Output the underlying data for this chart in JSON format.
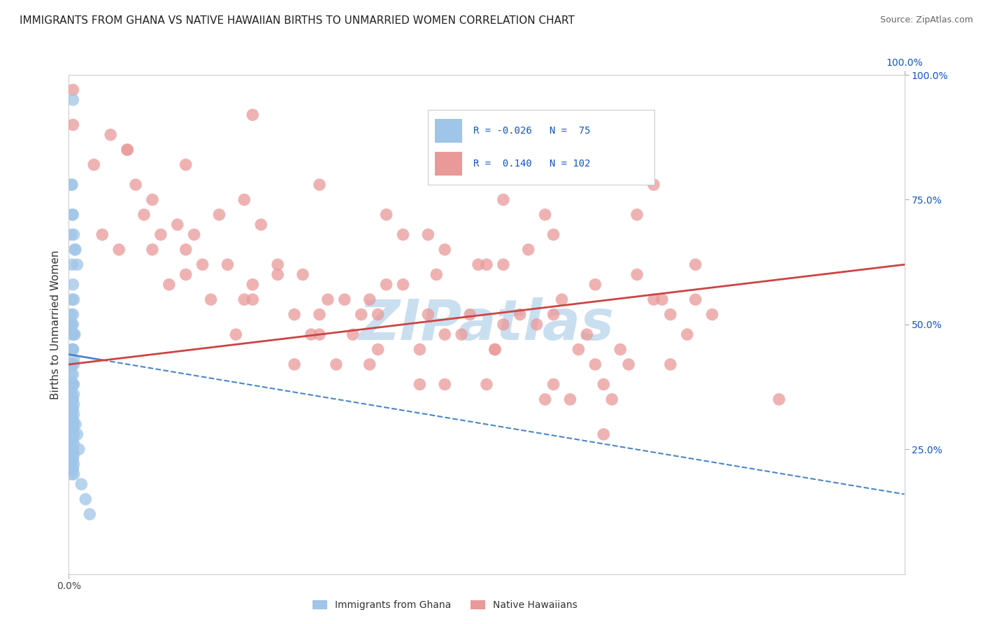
{
  "title": "IMMIGRANTS FROM GHANA VS NATIVE HAWAIIAN BIRTHS TO UNMARRIED WOMEN CORRELATION CHART",
  "source_text": "Source: ZipAtlas.com",
  "ylabel": "Births to Unmarried Women",
  "legend_label1": "Immigrants from Ghana",
  "legend_label2": "Native Hawaiians",
  "R1": "-0.026",
  "N1": "75",
  "R2": "0.140",
  "N2": "102",
  "color_blue": "#9fc5e8",
  "color_pink": "#ea9999",
  "color_blue_line": "#4a86c8",
  "color_pink_line": "#cc4444",
  "watermark_color": "#c9dff0",
  "background_color": "#ffffff",
  "title_color": "#222222",
  "source_color": "#666666",
  "axis_label_color": "#333333",
  "tick_color": "#1155cc",
  "grid_color": "#e0e0e0",
  "xlim": [
    0.0,
    1.0
  ],
  "ylim": [
    0.0,
    1.0
  ],
  "blue_intercept": 0.44,
  "blue_slope": -0.28,
  "pink_intercept": 0.42,
  "pink_slope": 0.2,
  "blue_scatter_x": [
    0.005,
    0.003,
    0.004,
    0.006,
    0.008,
    0.01,
    0.004,
    0.005,
    0.003,
    0.007,
    0.004,
    0.005,
    0.006,
    0.003,
    0.005,
    0.007,
    0.004,
    0.005,
    0.003,
    0.006,
    0.004,
    0.003,
    0.005,
    0.006,
    0.004,
    0.003,
    0.005,
    0.006,
    0.004,
    0.003,
    0.005,
    0.006,
    0.003,
    0.004,
    0.005,
    0.006,
    0.003,
    0.004,
    0.005,
    0.006,
    0.003,
    0.004,
    0.005,
    0.006,
    0.003,
    0.004,
    0.005,
    0.006,
    0.003,
    0.004,
    0.005,
    0.006,
    0.003,
    0.004,
    0.005,
    0.006,
    0.003,
    0.004,
    0.005,
    0.006,
    0.003,
    0.004,
    0.005,
    0.006,
    0.003,
    0.015,
    0.02,
    0.025,
    0.008,
    0.01,
    0.012,
    0.003,
    0.004,
    0.005,
    0.006
  ],
  "blue_scatter_y": [
    0.95,
    0.78,
    0.72,
    0.68,
    0.65,
    0.62,
    0.78,
    0.72,
    0.68,
    0.65,
    0.62,
    0.58,
    0.55,
    0.52,
    0.5,
    0.48,
    0.55,
    0.52,
    0.5,
    0.48,
    0.45,
    0.42,
    0.45,
    0.43,
    0.42,
    0.4,
    0.4,
    0.38,
    0.38,
    0.37,
    0.38,
    0.36,
    0.36,
    0.35,
    0.35,
    0.34,
    0.34,
    0.33,
    0.33,
    0.32,
    0.32,
    0.31,
    0.31,
    0.3,
    0.3,
    0.29,
    0.29,
    0.28,
    0.28,
    0.27,
    0.27,
    0.26,
    0.26,
    0.25,
    0.25,
    0.24,
    0.24,
    0.23,
    0.23,
    0.22,
    0.22,
    0.21,
    0.21,
    0.2,
    0.2,
    0.18,
    0.15,
    0.12,
    0.3,
    0.28,
    0.25,
    0.5,
    0.48,
    0.45,
    0.42
  ],
  "pink_scatter_x": [
    0.005,
    0.07,
    0.14,
    0.22,
    0.3,
    0.38,
    0.45,
    0.52,
    0.58,
    0.65,
    0.05,
    0.13,
    0.21,
    0.28,
    0.36,
    0.43,
    0.5,
    0.57,
    0.63,
    0.7,
    0.1,
    0.18,
    0.25,
    0.33,
    0.4,
    0.48,
    0.55,
    0.62,
    0.68,
    0.75,
    0.08,
    0.16,
    0.23,
    0.31,
    0.38,
    0.45,
    0.52,
    0.59,
    0.66,
    0.72,
    0.06,
    0.14,
    0.22,
    0.3,
    0.37,
    0.44,
    0.51,
    0.58,
    0.64,
    0.71,
    0.09,
    0.17,
    0.25,
    0.32,
    0.4,
    0.47,
    0.54,
    0.61,
    0.68,
    0.75,
    0.11,
    0.19,
    0.27,
    0.34,
    0.42,
    0.49,
    0.56,
    0.63,
    0.7,
    0.77,
    0.04,
    0.12,
    0.2,
    0.27,
    0.35,
    0.42,
    0.5,
    0.57,
    0.64,
    0.85,
    0.03,
    0.15,
    0.22,
    0.3,
    0.37,
    0.45,
    0.52,
    0.6,
    0.67,
    0.74,
    0.07,
    0.14,
    0.21,
    0.29,
    0.36,
    0.43,
    0.51,
    0.58,
    0.65,
    0.72,
    0.005,
    0.1
  ],
  "pink_scatter_y": [
    0.97,
    0.85,
    0.82,
    0.92,
    0.78,
    0.72,
    0.65,
    0.75,
    0.68,
    0.82,
    0.88,
    0.7,
    0.75,
    0.6,
    0.55,
    0.68,
    0.62,
    0.72,
    0.58,
    0.78,
    0.65,
    0.72,
    0.6,
    0.55,
    0.68,
    0.52,
    0.65,
    0.48,
    0.72,
    0.55,
    0.78,
    0.62,
    0.7,
    0.55,
    0.58,
    0.48,
    0.62,
    0.55,
    0.45,
    0.52,
    0.65,
    0.6,
    0.55,
    0.48,
    0.52,
    0.6,
    0.45,
    0.52,
    0.38,
    0.55,
    0.72,
    0.55,
    0.62,
    0.42,
    0.58,
    0.48,
    0.52,
    0.45,
    0.6,
    0.62,
    0.68,
    0.62,
    0.52,
    0.48,
    0.38,
    0.62,
    0.5,
    0.42,
    0.55,
    0.52,
    0.68,
    0.58,
    0.48,
    0.42,
    0.52,
    0.45,
    0.38,
    0.35,
    0.28,
    0.35,
    0.82,
    0.68,
    0.58,
    0.52,
    0.45,
    0.38,
    0.5,
    0.35,
    0.42,
    0.48,
    0.85,
    0.65,
    0.55,
    0.48,
    0.42,
    0.52,
    0.45,
    0.38,
    0.35,
    0.42,
    0.9,
    0.75
  ]
}
